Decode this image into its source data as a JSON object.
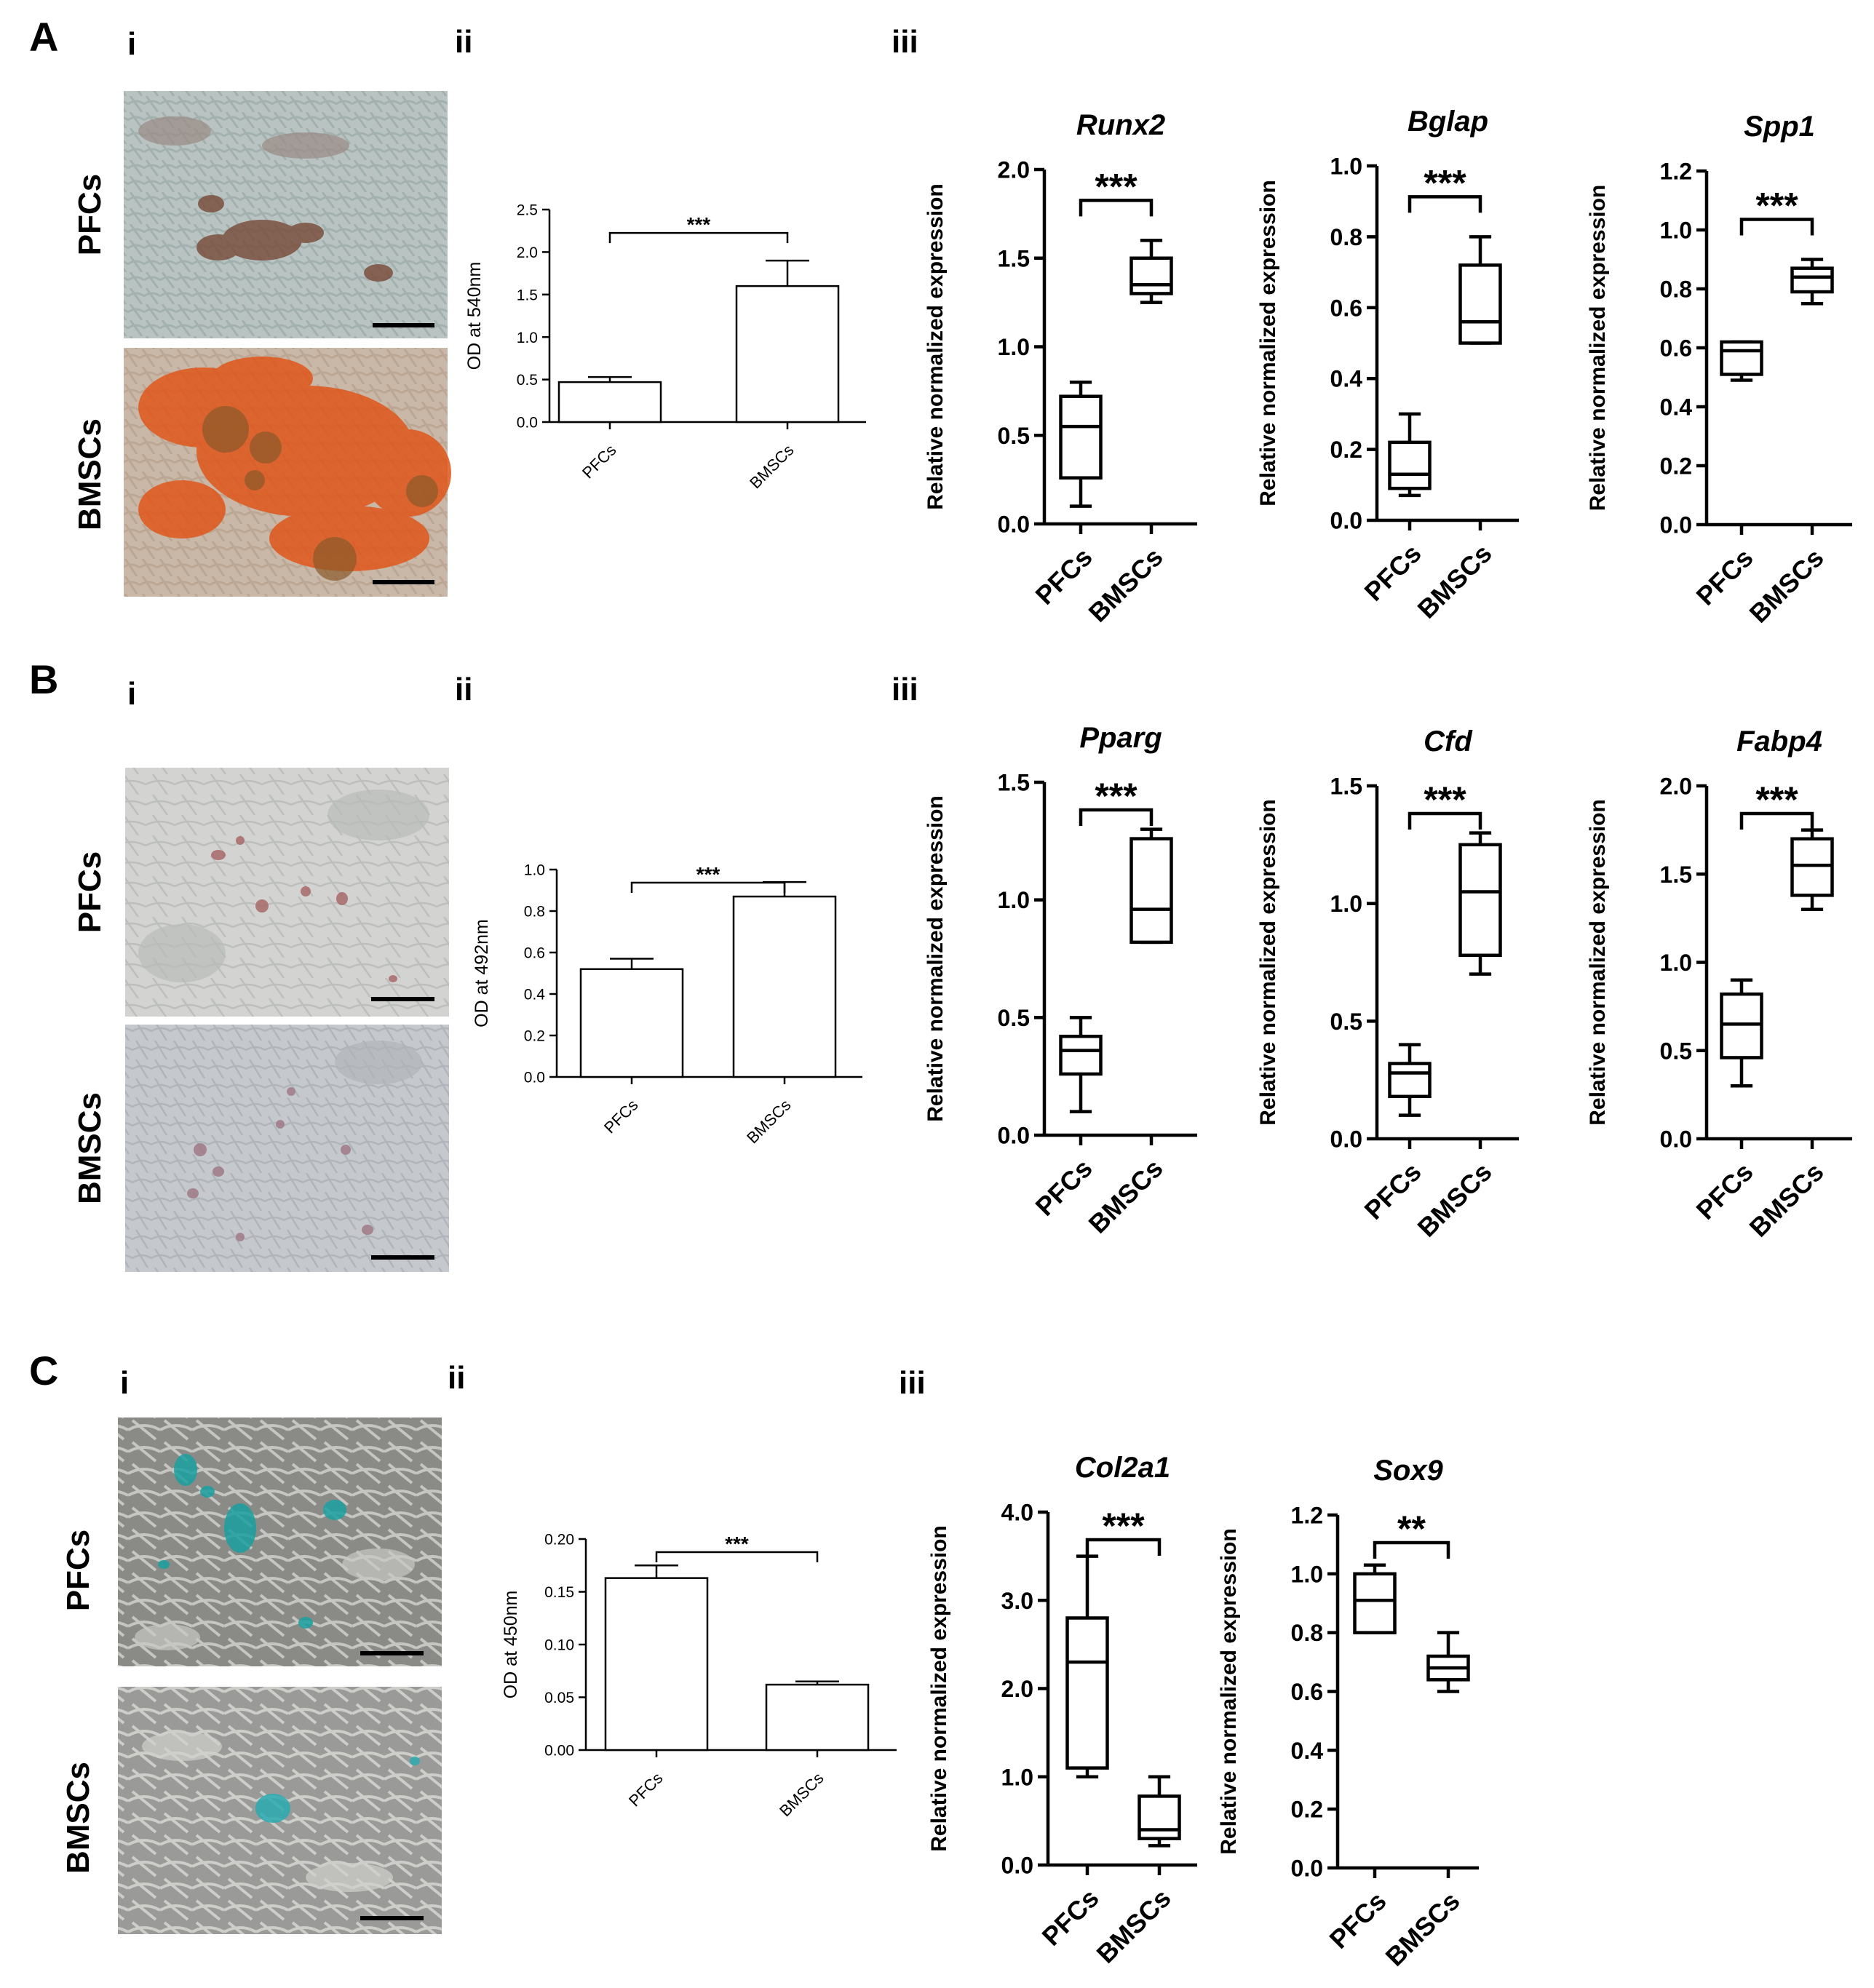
{
  "panels": [
    {
      "letter": "A",
      "sub_i": "i",
      "sub_ii": "ii",
      "sub_iii": "iii",
      "photo_labels": [
        "PFCs",
        "BMSCs"
      ],
      "photo_colors": [
        {
          "bg": "#b9c4c2",
          "spot": "#7a5040",
          "spot2": "#9a8a84"
        },
        {
          "bg": "#c9b8a8",
          "spot": "#e0561a",
          "spot2": "#8a5a2a"
        }
      ]
    },
    {
      "letter": "B",
      "sub_i": "i",
      "sub_ii": "ii",
      "sub_iii": "iii",
      "photo_labels": [
        "PFCs",
        "BMSCs"
      ],
      "photo_colors": [
        {
          "bg": "#d3d4d1",
          "spot": "#a86a6a",
          "spot2": "#b8bcb8"
        },
        {
          "bg": "#c5c8cc",
          "spot": "#a07a86",
          "spot2": "#b0b4b8"
        }
      ]
    },
    {
      "letter": "C",
      "sub_i": "i",
      "sub_ii": "ii",
      "sub_iii": "iii",
      "photo_labels": [
        "PFCs",
        "BMSCs"
      ],
      "photo_colors": [
        {
          "bg": "#8a8a86",
          "spot": "#1aa0a0",
          "spot2": "#c8c8c4"
        },
        {
          "bg": "#9a9a98",
          "spot": "#2aaab0",
          "spot2": "#d0d0cc"
        }
      ]
    }
  ],
  "chart_data": [
    {
      "id": "A-ii",
      "type": "bar",
      "categories": [
        "PFCs",
        "BMSCs"
      ],
      "values": [
        0.47,
        1.6
      ],
      "errors": [
        0.06,
        0.3
      ],
      "ylabel": "OD at 540nm",
      "ylim": [
        0,
        2.5
      ],
      "ticks": [
        0.0,
        0.5,
        1.0,
        1.5,
        2.0,
        2.5
      ],
      "tick_labels": [
        "0.0",
        "0.5",
        "1.0",
        "1.5",
        "2.0",
        "2.5"
      ],
      "significance": "***"
    },
    {
      "id": "A-iii-1",
      "type": "box",
      "title": "Runx2",
      "categories": [
        "PFCs",
        "BMSCs"
      ],
      "ylabel": "Relative normalized expression",
      "ylim": [
        0,
        2.0
      ],
      "ticks": [
        0.0,
        0.5,
        1.0,
        1.5,
        2.0
      ],
      "tick_labels": [
        "0.0",
        "0.5",
        "1.0",
        "1.5",
        "2.0"
      ],
      "boxes": [
        {
          "min": 0.1,
          "q1": 0.26,
          "median": 0.55,
          "q3": 0.72,
          "max": 0.8
        },
        {
          "min": 1.25,
          "q1": 1.3,
          "median": 1.35,
          "q3": 1.5,
          "max": 1.6
        }
      ],
      "significance": "***"
    },
    {
      "id": "A-iii-2",
      "type": "box",
      "title": "Bglap",
      "categories": [
        "PFCs",
        "BMSCs"
      ],
      "ylabel": "Relative normalized expression",
      "ylim": [
        0,
        1.0
      ],
      "ticks": [
        0.0,
        0.2,
        0.4,
        0.6,
        0.8,
        1.0
      ],
      "tick_labels": [
        "0.0",
        "0.2",
        "0.4",
        "0.6",
        "0.8",
        "1.0"
      ],
      "boxes": [
        {
          "min": 0.07,
          "q1": 0.09,
          "median": 0.13,
          "q3": 0.22,
          "max": 0.3
        },
        {
          "min": 0.5,
          "q1": 0.5,
          "median": 0.56,
          "q3": 0.72,
          "max": 0.8
        }
      ],
      "significance": "***"
    },
    {
      "id": "A-iii-3",
      "type": "box",
      "title": "Spp1",
      "categories": [
        "PFCs",
        "BMSCs"
      ],
      "ylabel": "Relative normalized expression",
      "ylim": [
        0,
        1.2
      ],
      "ticks": [
        0.0,
        0.2,
        0.4,
        0.6,
        0.8,
        1.0,
        1.2
      ],
      "tick_labels": [
        "0.0",
        "0.2",
        "0.4",
        "0.6",
        "0.8",
        "1.0",
        "1.2"
      ],
      "boxes": [
        {
          "min": 0.49,
          "q1": 0.51,
          "median": 0.59,
          "q3": 0.62,
          "max": 0.62
        },
        {
          "min": 0.75,
          "q1": 0.79,
          "median": 0.84,
          "q3": 0.87,
          "max": 0.9
        }
      ],
      "significance": "***"
    },
    {
      "id": "B-ii",
      "type": "bar",
      "categories": [
        "PFCs",
        "BMSCs"
      ],
      "values": [
        0.52,
        0.87
      ],
      "errors": [
        0.05,
        0.07
      ],
      "ylabel": "OD at 492nm",
      "ylim": [
        0,
        1.0
      ],
      "ticks": [
        0.0,
        0.2,
        0.4,
        0.6,
        0.8,
        1.0
      ],
      "tick_labels": [
        "0.0",
        "0.2",
        "0.4",
        "0.6",
        "0.8",
        "1.0"
      ],
      "significance": "***"
    },
    {
      "id": "B-iii-1",
      "type": "box",
      "title": "Pparg",
      "categories": [
        "PFCs",
        "BMSCs"
      ],
      "ylabel": "Relative normalized expression",
      "ylim": [
        0,
        1.5
      ],
      "ticks": [
        0.0,
        0.5,
        1.0,
        1.5
      ],
      "tick_labels": [
        "0.0",
        "0.5",
        "1.0",
        "1.5"
      ],
      "boxes": [
        {
          "min": 0.1,
          "q1": 0.26,
          "median": 0.36,
          "q3": 0.42,
          "max": 0.5
        },
        {
          "min": 0.82,
          "q1": 0.82,
          "median": 0.96,
          "q3": 1.26,
          "max": 1.3
        }
      ],
      "significance": "***"
    },
    {
      "id": "B-iii-2",
      "type": "box",
      "title": "Cfd",
      "categories": [
        "PFCs",
        "BMSCs"
      ],
      "ylabel": "Relative normalized expression",
      "ylim": [
        0,
        1.5
      ],
      "ticks": [
        0.0,
        0.5,
        1.0,
        1.5
      ],
      "tick_labels": [
        "0.0",
        "0.5",
        "1.0",
        "1.5"
      ],
      "boxes": [
        {
          "min": 0.1,
          "q1": 0.18,
          "median": 0.28,
          "q3": 0.32,
          "max": 0.4
        },
        {
          "min": 0.7,
          "q1": 0.78,
          "median": 1.05,
          "q3": 1.25,
          "max": 1.3
        }
      ],
      "significance": "***"
    },
    {
      "id": "B-iii-3",
      "type": "box",
      "title": "Fabp4",
      "categories": [
        "PFCs",
        "BMSCs"
      ],
      "ylabel": "Relative normalized expression",
      "ylim": [
        0,
        2.0
      ],
      "ticks": [
        0.0,
        0.5,
        1.0,
        1.5,
        2.0
      ],
      "tick_labels": [
        "0.0",
        "0.5",
        "1.0",
        "1.5",
        "2.0"
      ],
      "boxes": [
        {
          "min": 0.3,
          "q1": 0.46,
          "median": 0.65,
          "q3": 0.82,
          "max": 0.9
        },
        {
          "min": 1.3,
          "q1": 1.38,
          "median": 1.55,
          "q3": 1.7,
          "max": 1.75
        }
      ],
      "significance": "***"
    },
    {
      "id": "C-ii",
      "type": "bar",
      "categories": [
        "PFCs",
        "BMSCs"
      ],
      "values": [
        0.163,
        0.062
      ],
      "errors": [
        0.012,
        0.003
      ],
      "ylabel": "OD at 450nm",
      "ylim": [
        0,
        0.2
      ],
      "ticks": [
        0.0,
        0.05,
        0.1,
        0.15,
        0.2
      ],
      "tick_labels": [
        "0.00",
        "0.05",
        "0.10",
        "0.15",
        "0.20"
      ],
      "significance": "***"
    },
    {
      "id": "C-iii-1",
      "type": "box",
      "title": "Col2a1",
      "categories": [
        "PFCs",
        "BMSCs"
      ],
      "ylabel": "Relative normalized expression",
      "ylim": [
        0,
        4.0
      ],
      "ticks": [
        0.0,
        1.0,
        2.0,
        3.0,
        4.0
      ],
      "tick_labels": [
        "0.0",
        "1.0",
        "2.0",
        "3.0",
        "4.0"
      ],
      "boxes": [
        {
          "min": 1.0,
          "q1": 1.1,
          "median": 2.3,
          "q3": 2.8,
          "max": 3.5
        },
        {
          "min": 0.22,
          "q1": 0.3,
          "median": 0.4,
          "q3": 0.78,
          "max": 1.0
        }
      ],
      "significance": "***"
    },
    {
      "id": "C-iii-2",
      "type": "box",
      "title": "Sox9",
      "categories": [
        "PFCs",
        "BMSCs"
      ],
      "ylabel": "Relative normalized expression",
      "ylim": [
        0,
        1.2
      ],
      "ticks": [
        0.0,
        0.2,
        0.4,
        0.6,
        0.8,
        1.0,
        1.2
      ],
      "tick_labels": [
        "0.0",
        "0.2",
        "0.4",
        "0.6",
        "0.8",
        "1.0",
        "1.2"
      ],
      "boxes": [
        {
          "min": 0.8,
          "q1": 0.8,
          "median": 0.91,
          "q3": 1.0,
          "max": 1.03
        },
        {
          "min": 0.6,
          "q1": 0.64,
          "median": 0.68,
          "q3": 0.72,
          "max": 0.8
        }
      ],
      "significance": "**"
    }
  ]
}
